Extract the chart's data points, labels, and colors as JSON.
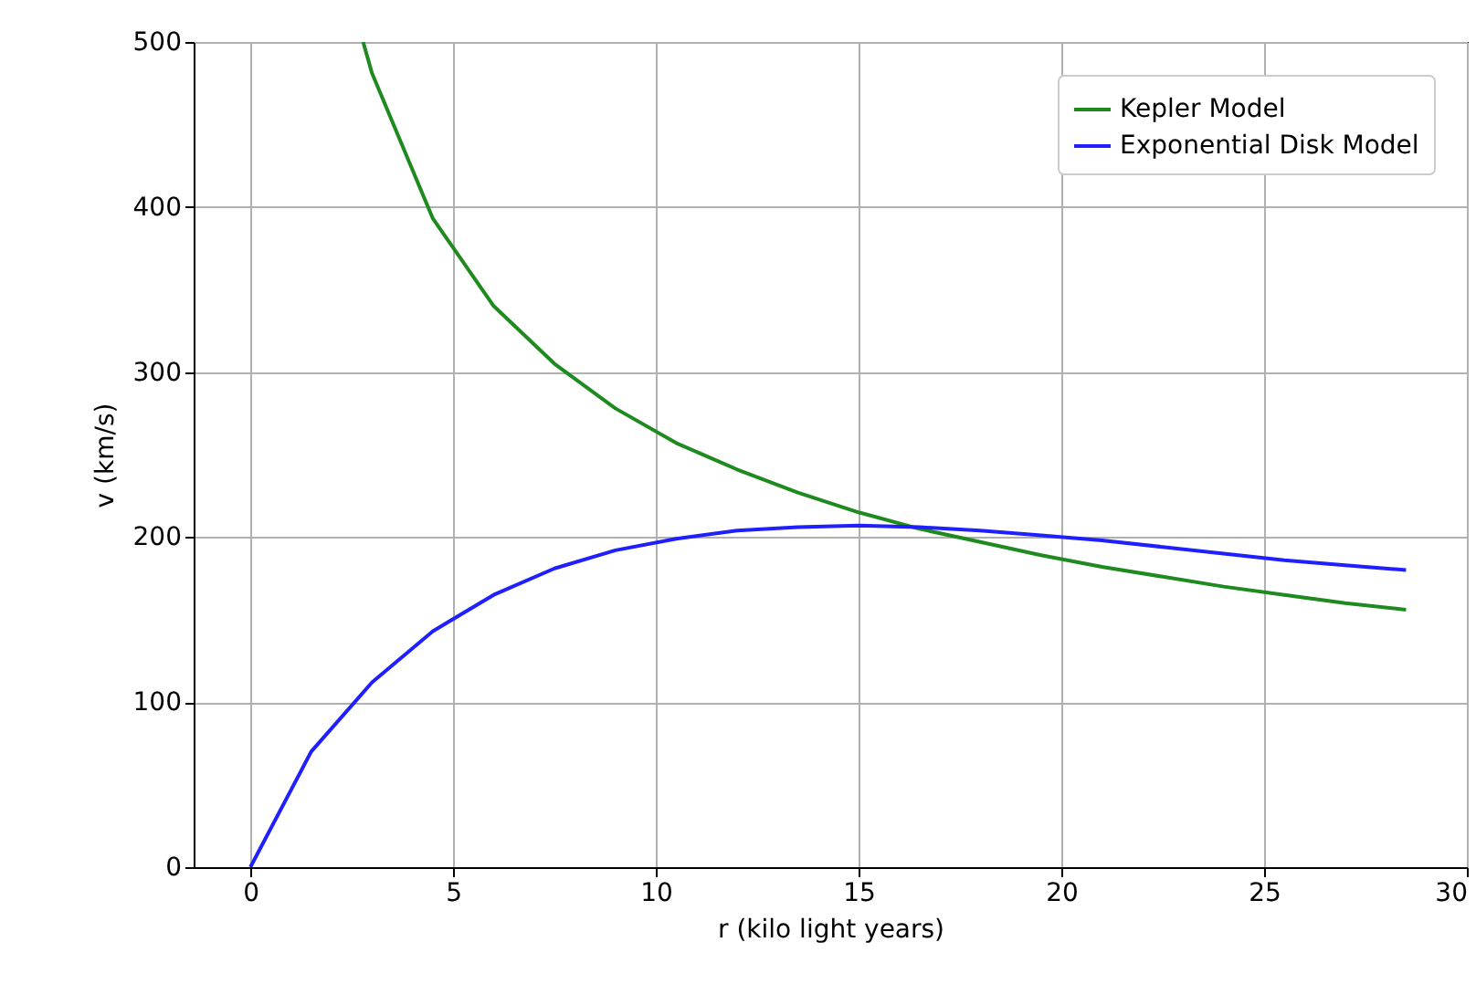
{
  "chart_data": {
    "type": "line",
    "xlabel": "r (kilo light years)",
    "ylabel": "v (km/s)",
    "xlim": [
      -1.4,
      30
    ],
    "xticks": [
      0,
      5,
      10,
      15,
      20,
      25,
      30
    ],
    "ylim": [
      0,
      500
    ],
    "yticks": [
      0,
      100,
      200,
      300,
      400,
      500
    ],
    "grid": true,
    "legend": "top right",
    "series": [
      {
        "name": "Kepler Model",
        "color": "#1f8a1f",
        "x": [
          2.78,
          3,
          4.5,
          6,
          7.5,
          9,
          10.5,
          12,
          13.5,
          15,
          16.5,
          18,
          19.5,
          21,
          22.5,
          24,
          25.5,
          27,
          28.5
        ],
        "values": [
          500,
          481,
          393,
          340,
          305,
          278,
          257,
          241,
          227,
          215,
          205,
          197,
          189,
          182,
          176,
          170,
          165,
          160,
          156
        ]
      },
      {
        "name": "Exponential Disk Model",
        "color": "#1f1fff",
        "x": [
          0,
          1.5,
          3,
          4.5,
          6,
          7.5,
          9,
          10.5,
          12,
          13.5,
          15,
          16.5,
          18,
          19.5,
          21,
          22.5,
          24,
          25.5,
          27,
          28.5
        ],
        "values": [
          0,
          70,
          112,
          143,
          165,
          181,
          192,
          199,
          204,
          206,
          207,
          206,
          204,
          201,
          198,
          194,
          190,
          186,
          183,
          180
        ]
      }
    ]
  }
}
